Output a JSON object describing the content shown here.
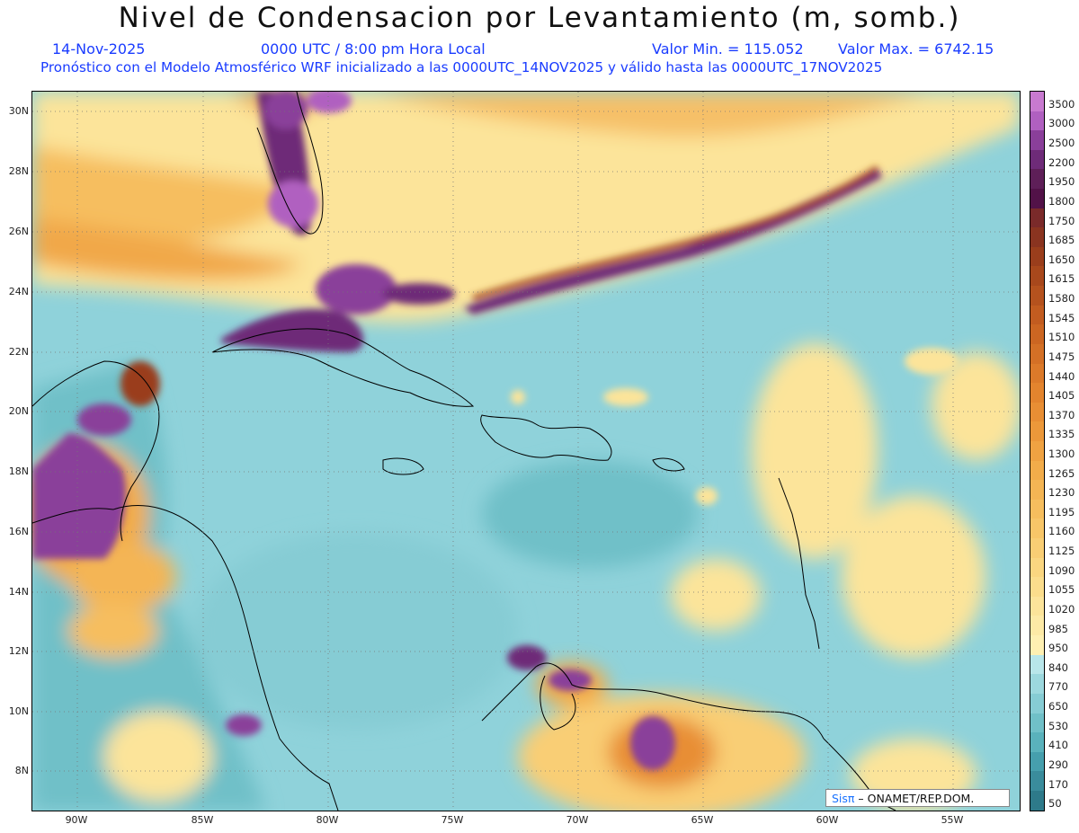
{
  "header": {
    "title": "Nivel de Condensacion por Levantamiento (m, somb.)",
    "date": "14-Nov-2025",
    "time": "0000 UTC / 8:00 pm Hora Local",
    "min_label": "Valor Min. = 115.052",
    "max_label": "Valor Max. = 6742.15",
    "forecast_line": "Pronóstico con el Modelo Atmosférico WRF inicializado a las 0000UTC_14NOV2025 y válido hasta las  0000UTC_17NOV2025"
  },
  "axes": {
    "lat_labels": [
      "30N",
      "28N",
      "26N",
      "24N",
      "22N",
      "20N",
      "18N",
      "16N",
      "14N",
      "12N",
      "10N",
      "8N"
    ],
    "lon_labels": [
      "90W",
      "85W",
      "80W",
      "75W",
      "70W",
      "65W",
      "60W",
      "55W"
    ]
  },
  "colorbar": {
    "levels": [
      "3500",
      "3000",
      "2500",
      "2200",
      "1950",
      "1800",
      "1750",
      "1685",
      "1650",
      "1615",
      "1580",
      "1545",
      "1510",
      "1475",
      "1440",
      "1405",
      "1370",
      "1335",
      "1300",
      "1265",
      "1230",
      "1195",
      "1160",
      "1125",
      "1090",
      "1055",
      "1020",
      "985",
      "950",
      "840",
      "770",
      "650",
      "530",
      "410",
      "290",
      "170",
      "50"
    ],
    "colors": [
      "#c87ad0",
      "#b060c0",
      "#8a3f9a",
      "#6e2b78",
      "#5e1f58",
      "#521248",
      "#7a2a2a",
      "#8a3420",
      "#9a3e1c",
      "#a8481c",
      "#b5521e",
      "#c25c20",
      "#cc6622",
      "#d47026",
      "#dc7a2a",
      "#e3842e",
      "#e88e34",
      "#ec983a",
      "#efa242",
      "#f2ac4a",
      "#f4b554",
      "#f6be5e",
      "#f8c668",
      "#f9ce74",
      "#fad680",
      "#fbdd8c",
      "#fce49a",
      "#fdeaa6",
      "#fef0b2",
      "#b8e6ea",
      "#9cd8de",
      "#86ccd4",
      "#70c0c8",
      "#5ab2bc",
      "#469fad",
      "#3a8c9c",
      "#2e7a8a"
    ]
  },
  "credit": {
    "brand": "Sisπ",
    "org": " – ONAMET/REP.DOM."
  }
}
